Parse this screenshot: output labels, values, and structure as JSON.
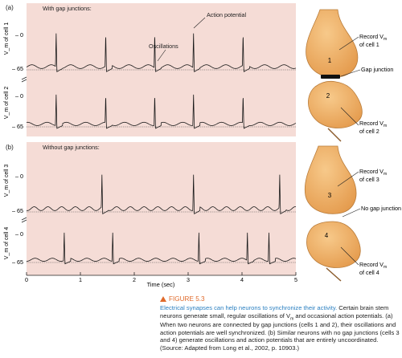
{
  "chart_data": {
    "type": "line",
    "xlabel": "Time (sec)",
    "x_ticks": [
      "0",
      "1",
      "2",
      "3",
      "4",
      "5"
    ],
    "xlim": [
      0,
      5
    ],
    "y_tick_labels": [
      "– 0",
      "– 65"
    ],
    "panels": [
      {
        "label": "(a)",
        "title": "With gap junctions:",
        "annotations": [
          "Action potential",
          "Oscillations"
        ],
        "traces": [
          {
            "name": "cell 1",
            "ylabel": "V_m of cell 1",
            "spike_times": [
              0.55,
              1.47,
              2.38,
              3.1,
              4.02
            ],
            "oscillation_period_s": 0.36
          },
          {
            "name": "cell 2",
            "ylabel": "V_m of cell 2",
            "spike_times": [
              0.55,
              1.47,
              2.38,
              3.1,
              4.02
            ],
            "oscillation_period_s": 0.36
          }
        ]
      },
      {
        "label": "(b)",
        "title": "Without gap junctions:",
        "annotations": [],
        "traces": [
          {
            "name": "cell 3",
            "ylabel": "V_m of cell 3",
            "spike_times": [
              1.4,
              3.1,
              4.7
            ],
            "oscillation_period_s": 0.255
          },
          {
            "name": "cell 4",
            "ylabel": "V_m of cell 4",
            "spike_times": [
              0.7,
              1.6,
              3.2,
              4.1,
              4.5
            ],
            "oscillation_period_s": 0.32
          }
        ]
      }
    ],
    "units": {
      "y": "mV",
      "x": "sec"
    }
  },
  "diagram": {
    "top": {
      "cell_upper": "1",
      "cell_lower": "2",
      "label_record_1": "Record V",
      "label_record_1_sub": "m",
      "label_record_1_tail": "of cell 1",
      "label_junction": "Gap junction",
      "label_record_2": "Record V",
      "label_record_2_sub": "m",
      "label_record_2_tail": "of cell 2"
    },
    "bottom": {
      "cell_upper": "3",
      "cell_lower": "4",
      "label_record_3": "Record V",
      "label_record_3_sub": "m",
      "label_record_3_tail": "of cell 3",
      "label_junction": "No gap junction",
      "label_record_4": "Record V",
      "label_record_4_sub": "m",
      "label_record_4_tail": "of cell 4"
    }
  },
  "caption": {
    "figure": "FIGURE 5.3",
    "lead": "Electrical synapses can help neurons to synchronize their activity.",
    "body_1": " Certain brain stem neurons generate small, regular oscillations of ",
    "vm_v": "V",
    "vm_sub": "m",
    "body_2": " and occasional action potentials. (a) When two neurons are connected by gap junctions (cells 1 and 2), their oscillations and action potentials are well synchronized. (b) Similar neurons with no gap junctions (cells 3 and 4) generate oscillations and action potentials that are entirely uncoordinated. (Source: Adapted from Long et al., 2002, p. 10903.)"
  },
  "colors": {
    "panel_bg": "#f5dcd6",
    "trace": "#1a1a1a",
    "cell_fill": "#eda458",
    "cell_stroke": "#b97c3a",
    "junction": "#111111",
    "accent_title": "#e06a2a",
    "accent_lead": "#2a7fc0"
  }
}
